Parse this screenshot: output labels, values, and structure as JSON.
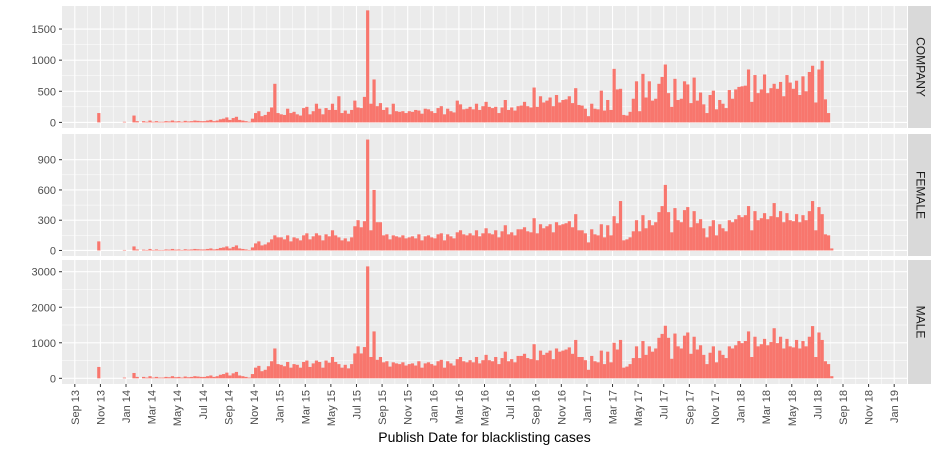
{
  "chart_data": {
    "type": "bar",
    "title": "",
    "xlabel": "Publish Date for blacklisting cases",
    "x_ticks": [
      "Sep 13",
      "Nov 13",
      "Jan 14",
      "Mar 14",
      "May 14",
      "Jul 14",
      "Sep 14",
      "Nov 14",
      "Jan 15",
      "Mar 15",
      "May 15",
      "Jul 15",
      "Sep 15",
      "Nov 15",
      "Jan 16",
      "Mar 16",
      "May 16",
      "Jul 16",
      "Sep 16",
      "Nov 16",
      "Jan 17",
      "Mar 17",
      "May 17",
      "Jul 17",
      "Sep 17",
      "Nov 17",
      "Jan 18",
      "Mar 18",
      "May 18",
      "Jul 18",
      "Sep 18",
      "Nov 18",
      "Jan 19"
    ],
    "x_range_months": [
      -1,
      65
    ],
    "bins_per_month": 4,
    "colors": {
      "bar": "#F8766D",
      "panel_bg": "#EBEBEB",
      "grid": "#FFFFFF",
      "strip_bg": "#D9D9D9"
    },
    "grid": true,
    "panels": [
      {
        "name": "COMPANY",
        "y_ticks": [
          0,
          500,
          1000,
          1500
        ],
        "ylim": [
          -90,
          1870
        ],
        "values": [
          0,
          0,
          0,
          0,
          0,
          0,
          0,
          150,
          0,
          0,
          0,
          0,
          0,
          0,
          0,
          10,
          0,
          0,
          110,
          20,
          0,
          20,
          10,
          30,
          10,
          20,
          10,
          10,
          20,
          15,
          30,
          15,
          20,
          10,
          25,
          15,
          20,
          30,
          25,
          20,
          20,
          30,
          40,
          20,
          30,
          50,
          60,
          80,
          40,
          70,
          90,
          40,
          30,
          20,
          10,
          60,
          150,
          180,
          100,
          120,
          170,
          240,
          620,
          150,
          130,
          120,
          220,
          150,
          170,
          130,
          110,
          230,
          250,
          130,
          180,
          300,
          220,
          130,
          230,
          200,
          300,
          200,
          420,
          150,
          190,
          140,
          200,
          350,
          240,
          230,
          410,
          1800,
          300,
          690,
          260,
          310,
          200,
          240,
          130,
          300,
          180,
          170,
          180,
          150,
          180,
          170,
          200,
          190,
          140,
          220,
          210,
          180,
          150,
          230,
          260,
          130,
          220,
          180,
          160,
          350,
          290,
          210,
          220,
          250,
          210,
          300,
          200,
          260,
          330,
          250,
          230,
          250,
          150,
          240,
          360,
          200,
          240,
          190,
          260,
          270,
          330,
          260,
          240,
          560,
          250,
          420,
          320,
          350,
          400,
          260,
          440,
          320,
          360,
          370,
          420,
          310,
          550,
          280,
          270,
          220,
          100,
          300,
          220,
          210,
          510,
          190,
          360,
          200,
          860,
          530,
          540,
          120,
          110,
          170,
          380,
          660,
          180,
          780,
          400,
          660,
          350,
          380,
          620,
          730,
          930,
          470,
          250,
          700,
          360,
          380,
          660,
          610,
          310,
          720,
          350,
          480,
          290,
          150,
          440,
          510,
          210,
          360,
          300,
          230,
          520,
          380,
          530,
          570,
          580,
          590,
          850,
          330,
          760,
          470,
          530,
          770,
          470,
          550,
          620,
          540,
          650,
          420,
          760,
          640,
          540,
          670,
          440,
          740,
          500,
          810,
          910,
          320,
          850,
          990,
          370,
          150,
          0,
          0,
          0,
          0
        ]
      },
      {
        "name": "FEMALE",
        "y_ticks": [
          0,
          300,
          600,
          900
        ],
        "ylim": [
          -55,
          1155
        ],
        "values": [
          0,
          0,
          0,
          0,
          0,
          0,
          0,
          90,
          0,
          0,
          0,
          0,
          0,
          0,
          0,
          5,
          0,
          0,
          40,
          10,
          0,
          8,
          5,
          15,
          5,
          10,
          5,
          5,
          10,
          8,
          15,
          8,
          10,
          5,
          12,
          8,
          10,
          15,
          12,
          10,
          10,
          15,
          20,
          10,
          15,
          25,
          30,
          40,
          20,
          35,
          50,
          20,
          15,
          10,
          5,
          30,
          70,
          90,
          50,
          60,
          80,
          110,
          150,
          130,
          130,
          110,
          150,
          90,
          130,
          120,
          100,
          150,
          170,
          110,
          140,
          170,
          150,
          100,
          160,
          140,
          200,
          150,
          130,
          100,
          120,
          90,
          130,
          240,
          300,
          230,
          290,
          1100,
          200,
          600,
          280,
          280,
          150,
          160,
          110,
          150,
          140,
          130,
          150,
          120,
          130,
          140,
          120,
          160,
          100,
          140,
          150,
          130,
          120,
          160,
          170,
          100,
          160,
          140,
          120,
          180,
          200,
          160,
          150,
          170,
          150,
          200,
          140,
          170,
          220,
          170,
          160,
          200,
          130,
          190,
          250,
          160,
          180,
          150,
          210,
          210,
          230,
          190,
          180,
          320,
          170,
          260,
          220,
          240,
          260,
          180,
          280,
          250,
          260,
          270,
          290,
          230,
          360,
          200,
          200,
          170,
          80,
          210,
          160,
          150,
          260,
          130,
          250,
          150,
          340,
          270,
          490,
          100,
          110,
          130,
          190,
          300,
          190,
          350,
          220,
          300,
          250,
          280,
          380,
          440,
          650,
          380,
          180,
          420,
          300,
          280,
          400,
          430,
          230,
          390,
          270,
          310,
          220,
          130,
          240,
          300,
          150,
          260,
          220,
          190,
          300,
          280,
          310,
          350,
          330,
          350,
          440,
          200,
          390,
          300,
          320,
          370,
          310,
          340,
          470,
          330,
          390,
          280,
          370,
          300,
          290,
          360,
          280,
          350,
          300,
          390,
          490,
          200,
          430,
          360,
          160,
          150,
          20,
          0,
          0,
          0
        ]
      },
      {
        "name": "MALE",
        "y_ticks": [
          0,
          1000,
          2000,
          3000
        ],
        "ylim": [
          -160,
          3330
        ],
        "values": [
          0,
          0,
          0,
          0,
          0,
          0,
          0,
          320,
          0,
          0,
          0,
          0,
          0,
          0,
          0,
          20,
          0,
          0,
          150,
          40,
          0,
          40,
          20,
          60,
          20,
          40,
          20,
          20,
          40,
          30,
          60,
          30,
          40,
          20,
          50,
          30,
          40,
          60,
          50,
          40,
          40,
          60,
          80,
          40,
          60,
          100,
          120,
          160,
          80,
          140,
          180,
          80,
          60,
          40,
          20,
          120,
          300,
          350,
          200,
          240,
          340,
          480,
          840,
          400,
          380,
          340,
          460,
          300,
          400,
          380,
          300,
          460,
          500,
          320,
          420,
          500,
          460,
          300,
          500,
          440,
          600,
          460,
          400,
          300,
          380,
          280,
          400,
          700,
          900,
          700,
          880,
          3150,
          600,
          1320,
          520,
          600,
          450,
          480,
          330,
          450,
          420,
          400,
          450,
          360,
          400,
          420,
          360,
          480,
          300,
          420,
          450,
          400,
          360,
          480,
          520,
          300,
          480,
          420,
          360,
          540,
          600,
          480,
          450,
          510,
          450,
          600,
          420,
          510,
          660,
          510,
          480,
          600,
          400,
          570,
          750,
          480,
          540,
          450,
          630,
          630,
          690,
          570,
          540,
          960,
          510,
          780,
          660,
          720,
          780,
          540,
          840,
          750,
          780,
          810,
          870,
          690,
          1080,
          600,
          600,
          510,
          240,
          630,
          480,
          450,
          780,
          400,
          750,
          450,
          1000,
          810,
          1080,
          300,
          330,
          400,
          570,
          900,
          570,
          1050,
          660,
          900,
          750,
          840,
          1140,
          1250,
          1480,
          1140,
          550,
          1260,
          900,
          840,
          1200,
          1290,
          690,
          1170,
          810,
          930,
          660,
          400,
          720,
          900,
          450,
          780,
          660,
          570,
          900,
          840,
          930,
          1050,
          990,
          1050,
          1320,
          600,
          1170,
          900,
          960,
          1110,
          930,
          1020,
          1410,
          990,
          1170,
          840,
          1110,
          900,
          870,
          1080,
          840,
          1050,
          900,
          1170,
          1470,
          600,
          1290,
          1080,
          480,
          400,
          60,
          0,
          0,
          0
        ]
      }
    ]
  }
}
